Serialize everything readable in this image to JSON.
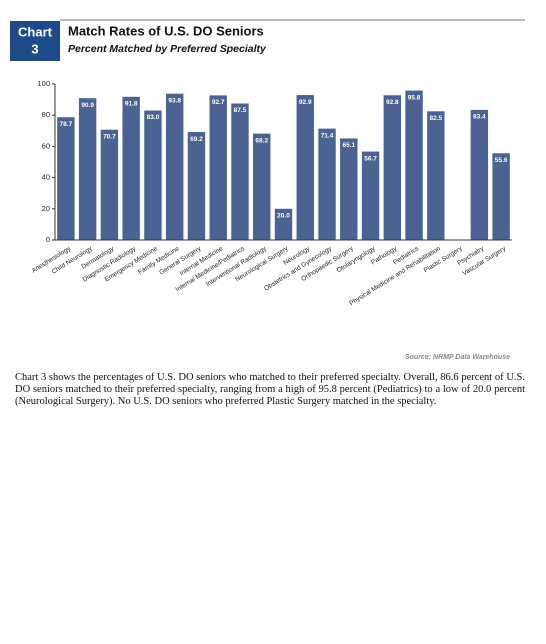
{
  "badge": {
    "word": "Chart",
    "number": "3"
  },
  "chart_data": {
    "type": "bar",
    "title": "Match Rates of U.S. DO Seniors",
    "subtitle": "Percent Matched by Preferred Specialty",
    "categories": [
      "Anesthesiology",
      "Child Neurology",
      "Dermatology",
      "Diagnostic Radiology",
      "Emergency Medicine",
      "Family Medicine",
      "General Surgery",
      "Internal Medicine",
      "Internal Medicine/Pediatrics",
      "Interventional Radiology",
      "Neurological Surgery",
      "Neurology",
      "Obstetrics and Gynecology",
      "Orthopaedic Surgery",
      "Otolaryngology",
      "Pathology",
      "Pediatrics",
      "Physical Medicine and Rehabilitation",
      "Plastic Surgery",
      "Psychiatry",
      "Vascular Surgery"
    ],
    "values": [
      78.7,
      90.9,
      70.7,
      91.8,
      83.0,
      93.8,
      69.2,
      92.7,
      87.5,
      68.2,
      20.0,
      92.9,
      71.4,
      65.1,
      56.7,
      92.8,
      95.8,
      82.5,
      0,
      83.4,
      55.6
    ],
    "value_labels": [
      "78.7",
      "90.9",
      "70.7",
      "91.8",
      "83.0",
      "93.8",
      "69.2",
      "92.7",
      "87.5",
      "68.2",
      "20.0",
      "92.9",
      "71.4",
      "65.1",
      "56.7",
      "92.8",
      "95.8",
      "82.5",
      null,
      "83.4",
      "55.6"
    ],
    "color": "#4a6392",
    "ylim": [
      0,
      100
    ],
    "yticks": [
      0,
      20,
      40,
      60,
      80,
      100
    ],
    "source": "Source: NRMP Data Warehouse"
  },
  "paragraph": "Chart 3 shows the percentages of U.S. DO seniors who matched to their preferred specialty. Overall, 86.6 percent of U.S. DO seniors matched to their preferred specialty, ranging from a high of 95.8 percent (Pediatrics) to a low of 20.0 percent (Neurological Surgery). No U.S. DO seniors who preferred Plastic Surgery matched in the specialty."
}
